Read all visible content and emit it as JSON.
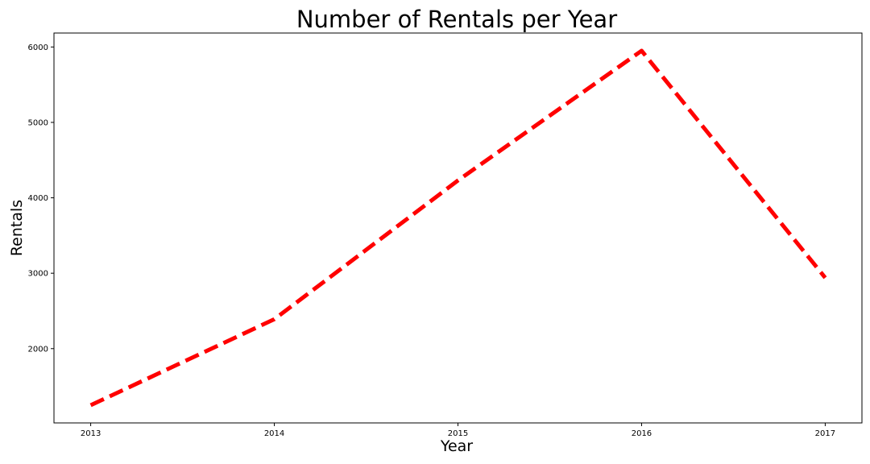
{
  "chart_data": {
    "type": "line",
    "title": "Number of Rentals per Year",
    "xlabel": "Year",
    "ylabel": "Rentals",
    "x": [
      2013,
      2014,
      2015,
      2016,
      2017
    ],
    "series": [
      {
        "values": [
          1250,
          2390,
          4230,
          5950,
          2940
        ],
        "color": "#ff0000",
        "line_style": "dashed"
      }
    ],
    "x_ticks": [
      "2013",
      "2014",
      "2015",
      "2016",
      "2017"
    ],
    "y_ticks": [
      2000,
      3000,
      4000,
      5000,
      6000
    ],
    "xlim": [
      2012.8,
      2017.2
    ],
    "ylim": [
      1015,
      6185
    ],
    "grid": false,
    "legend": "none"
  }
}
